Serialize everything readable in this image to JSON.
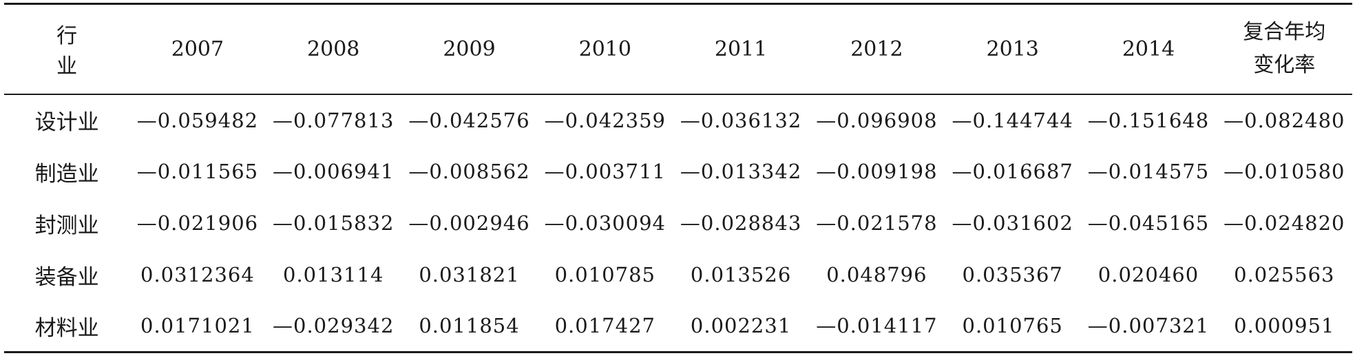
{
  "table": {
    "header": {
      "industry": "行　业",
      "years": [
        "2007",
        "2008",
        "2009",
        "2010",
        "2011",
        "2012",
        "2013",
        "2014"
      ],
      "cagr_line1": "复合年均",
      "cagr_line2": "变化率"
    },
    "rows": [
      {
        "industry": "设计业",
        "values": [
          "—0.059482",
          "—0.077813",
          "—0.042576",
          "—0.042359",
          "—0.036132",
          "—0.096908",
          "—0.144744",
          "—0.151648"
        ],
        "cagr": "—0.082480"
      },
      {
        "industry": "制造业",
        "values": [
          "—0.011565",
          "—0.006941",
          "—0.008562",
          "—0.003711",
          "—0.013342",
          "—0.009198",
          "—0.016687",
          "—0.014575"
        ],
        "cagr": "—0.010580"
      },
      {
        "industry": "封测业",
        "values": [
          "—0.021906",
          "—0.015832",
          "—0.002946",
          "—0.030094",
          "—0.028843",
          "—0.021578",
          "—0.031602",
          "—0.045165"
        ],
        "cagr": "—0.024820"
      },
      {
        "industry": "装备业",
        "values": [
          "0.0312364",
          "0.013114",
          "0.031821",
          "0.010785",
          "0.013526",
          "0.048796",
          "0.035367",
          "0.020460"
        ],
        "cagr": "0.025563"
      },
      {
        "industry": "材料业",
        "values": [
          "0.0171021",
          "—0.029342",
          "0.011854",
          "0.017427",
          "0.002231",
          "—0.014117",
          "0.010765",
          "—0.007321"
        ],
        "cagr": "0.000951"
      }
    ]
  }
}
